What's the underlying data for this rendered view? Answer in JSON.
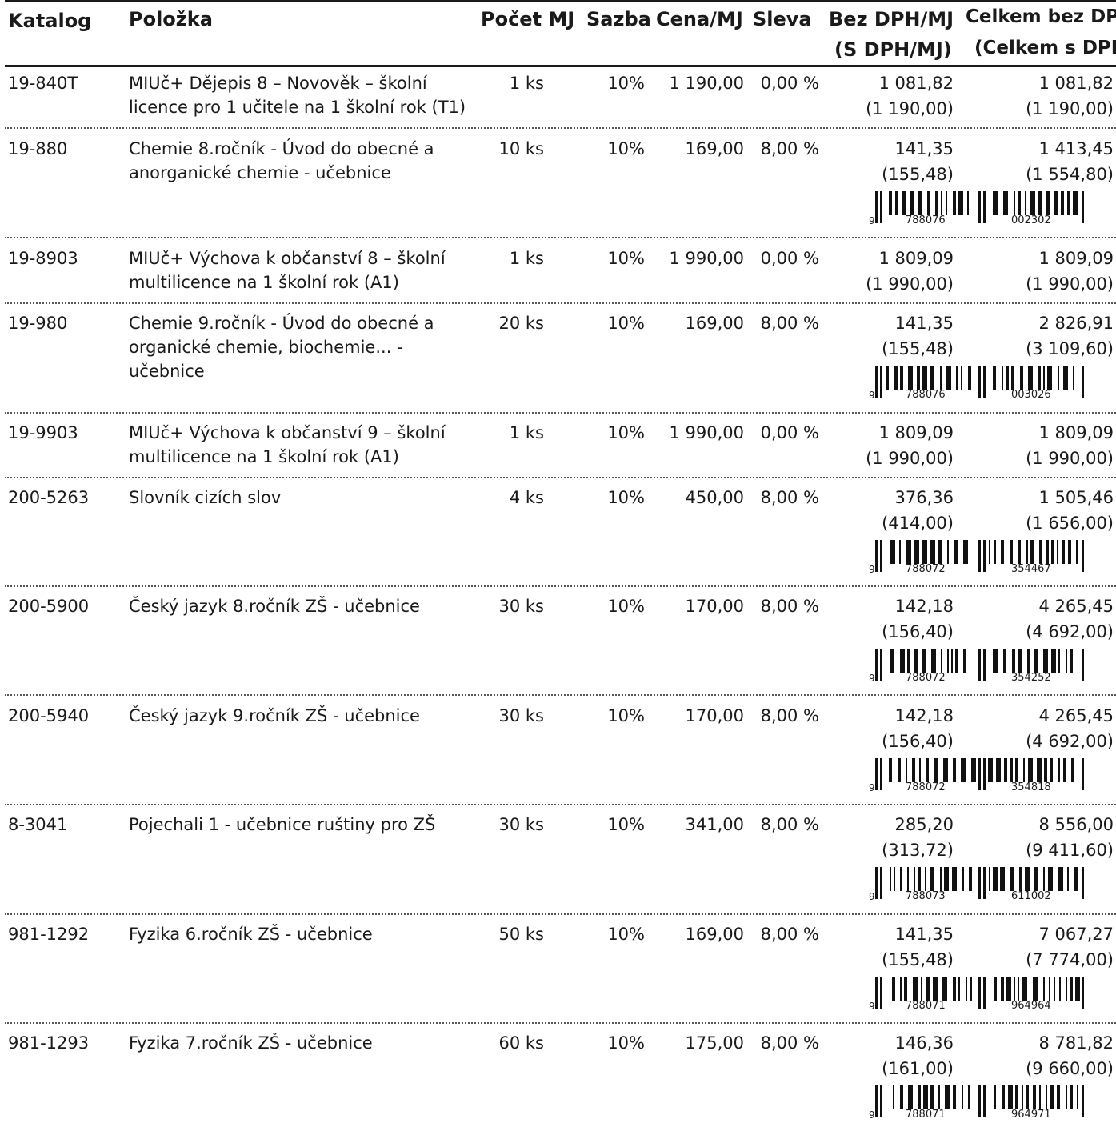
{
  "header": {
    "katalog": "Katalog",
    "polozka": "Položka",
    "pocet_mj": "Počet MJ",
    "sazba": "Sazba",
    "cena_mj": "Cena/MJ",
    "sleva": "Sleva",
    "bez_dph_mj": "Bez DPH/MJ",
    "s_dph_mj": "(S DPH/MJ)",
    "celkem_bez_dph": "Celkem bez DPH",
    "celkem_s_dph": "(Celkem s DPH)"
  },
  "rows": [
    {
      "katalog": "19-840T",
      "polozka": "MIUč+ Dějepis 8 – Novověk – školní licence pro 1 učitele na 1 školní rok (T1)",
      "pocet": "1 ks",
      "sazba": "10%",
      "cena": "1 190,00",
      "sleva": "0,00 %",
      "bez_dph_mj": "1 081,82",
      "s_dph_mj": "(1 190,00)",
      "celkem_bez": "1 081,82",
      "celkem_s": "(1 190,00)"
    },
    {
      "katalog": "19-880",
      "polozka": "Chemie 8.ročník - Úvod do obecné a anorganické chemie - učebnice",
      "pocet": "10 ks",
      "sazba": "10%",
      "cena": "169,00",
      "sleva": "8,00 %",
      "bez_dph_mj": "141,35",
      "s_dph_mj": "(155,48)",
      "celkem_bez": "1 413,45",
      "celkem_s": "(1 554,80)",
      "barcode": {
        "d0": "9",
        "d1": "788076",
        "d2": "002302"
      }
    },
    {
      "katalog": "19-8903",
      "polozka": "MIUč+ Výchova k občanství 8 – školní multilicence na 1 školní rok (A1)",
      "pocet": "1 ks",
      "sazba": "10%",
      "cena": "1 990,00",
      "sleva": "0,00 %",
      "bez_dph_mj": "1 809,09",
      "s_dph_mj": "(1 990,00)",
      "celkem_bez": "1 809,09",
      "celkem_s": "(1 990,00)"
    },
    {
      "katalog": "19-980",
      "polozka": "Chemie 9.ročník - Úvod do obecné a organické chemie, biochemie... - učebnice",
      "pocet": "20 ks",
      "sazba": "10%",
      "cena": "169,00",
      "sleva": "8,00 %",
      "bez_dph_mj": "141,35",
      "s_dph_mj": "(155,48)",
      "celkem_bez": "2 826,91",
      "celkem_s": "(3 109,60)",
      "barcode": {
        "d0": "9",
        "d1": "788076",
        "d2": "003026"
      }
    },
    {
      "katalog": "19-9903",
      "polozka": "MIUč+ Výchova k občanství 9 – školní multilicence na 1 školní rok (A1)",
      "pocet": "1 ks",
      "sazba": "10%",
      "cena": "1 990,00",
      "sleva": "0,00 %",
      "bez_dph_mj": "1 809,09",
      "s_dph_mj": "(1 990,00)",
      "celkem_bez": "1 809,09",
      "celkem_s": "(1 990,00)"
    },
    {
      "katalog": "200-5263",
      "polozka": "Slovník cizích slov",
      "pocet": "4 ks",
      "sazba": "10%",
      "cena": "450,00",
      "sleva": "8,00 %",
      "bez_dph_mj": "376,36",
      "s_dph_mj": "(414,00)",
      "celkem_bez": "1 505,46",
      "celkem_s": "(1 656,00)",
      "barcode": {
        "d0": "9",
        "d1": "788072",
        "d2": "354467"
      }
    },
    {
      "katalog": "200-5900",
      "polozka": "Český jazyk 8.ročník ZŠ - učebnice",
      "pocet": "30 ks",
      "sazba": "10%",
      "cena": "170,00",
      "sleva": "8,00 %",
      "bez_dph_mj": "142,18",
      "s_dph_mj": "(156,40)",
      "celkem_bez": "4 265,45",
      "celkem_s": "(4 692,00)",
      "barcode": {
        "d0": "9",
        "d1": "788072",
        "d2": "354252"
      }
    },
    {
      "katalog": "200-5940",
      "polozka": "Český jazyk 9.ročník ZŠ - učebnice",
      "pocet": "30 ks",
      "sazba": "10%",
      "cena": "170,00",
      "sleva": "8,00 %",
      "bez_dph_mj": "142,18",
      "s_dph_mj": "(156,40)",
      "celkem_bez": "4 265,45",
      "celkem_s": "(4 692,00)",
      "barcode": {
        "d0": "9",
        "d1": "788072",
        "d2": "354818"
      }
    },
    {
      "katalog": "8-3041",
      "polozka": "Pojechali 1 - učebnice ruštiny pro ZŠ",
      "pocet": "30 ks",
      "sazba": "10%",
      "cena": "341,00",
      "sleva": "8,00 %",
      "bez_dph_mj": "285,20",
      "s_dph_mj": "(313,72)",
      "celkem_bez": "8 556,00",
      "celkem_s": "(9 411,60)",
      "barcode": {
        "d0": "9",
        "d1": "788073",
        "d2": "611002"
      }
    },
    {
      "katalog": "981-1292",
      "polozka": "Fyzika 6.ročník ZŠ - učebnice",
      "pocet": "50 ks",
      "sazba": "10%",
      "cena": "169,00",
      "sleva": "8,00 %",
      "bez_dph_mj": "141,35",
      "s_dph_mj": "(155,48)",
      "celkem_bez": "7 067,27",
      "celkem_s": "(7 774,00)",
      "barcode": {
        "d0": "9",
        "d1": "788071",
        "d2": "964964"
      }
    },
    {
      "katalog": "981-1293",
      "polozka": "Fyzika 7.ročník ZŠ - učebnice",
      "pocet": "60 ks",
      "sazba": "10%",
      "cena": "175,00",
      "sleva": "8,00 %",
      "bez_dph_mj": "146,36",
      "s_dph_mj": "(161,00)",
      "celkem_bez": "8 781,82",
      "celkem_s": "(9 660,00)",
      "barcode": {
        "d0": "9",
        "d1": "788071",
        "d2": "964971"
      }
    }
  ]
}
